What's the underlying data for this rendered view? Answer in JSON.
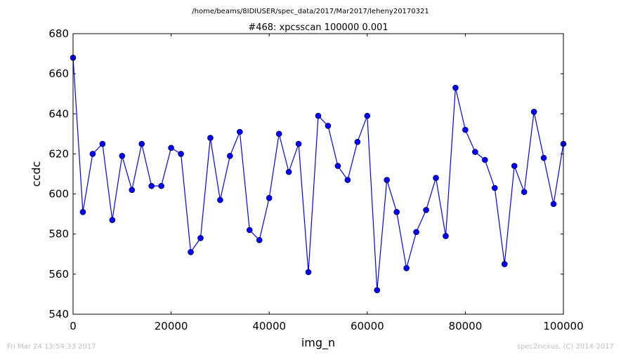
{
  "suptitle": "/home/beams/8IDIUSER/spec_data/2017/Mar2017/leheny20170321",
  "footer": {
    "timestamp": "Fri Mar 24 13:54:33 2017",
    "credit": "spec2nexus, (C) 2014-2017"
  },
  "chart_data": {
    "type": "line",
    "title": "#468: xpcsscan 100000 0.001",
    "xlabel": "img_n",
    "ylabel": "ccdc",
    "xlim": [
      0,
      100000
    ],
    "ylim": [
      540,
      680
    ],
    "xticks": [
      "0",
      "20000",
      "40000",
      "60000",
      "80000",
      "100000"
    ],
    "yticks": [
      "540",
      "560",
      "580",
      "600",
      "620",
      "640",
      "660",
      "680"
    ],
    "grid": false,
    "color": "#0000ff",
    "marker": "circle",
    "series": [
      {
        "x": [
          0,
          2000,
          4000,
          6000,
          8000,
          10000,
          12000,
          14000,
          16000,
          18000,
          20000,
          22000,
          24000,
          26000,
          28000,
          30000,
          32000,
          34000,
          36000,
          38000,
          40000,
          42000,
          44000,
          46000,
          48000,
          50000,
          52000,
          54000,
          56000,
          58000,
          60000,
          62000,
          64000,
          66000,
          68000,
          70000,
          72000,
          74000,
          76000,
          78000,
          80000,
          82000,
          84000,
          86000,
          88000,
          90000,
          92000,
          94000,
          96000,
          98000,
          100000
        ],
        "y": [
          668,
          591,
          620,
          625,
          587,
          619,
          602,
          625,
          604,
          604,
          623,
          620,
          571,
          578,
          628,
          597,
          619,
          631,
          582,
          577,
          598,
          630,
          611,
          625,
          561,
          639,
          634,
          614,
          607,
          626,
          639,
          552,
          607,
          591,
          563,
          581,
          592,
          608,
          579,
          653,
          632,
          621,
          617,
          603,
          565,
          614,
          601,
          641,
          618,
          595,
          625
        ]
      }
    ]
  }
}
